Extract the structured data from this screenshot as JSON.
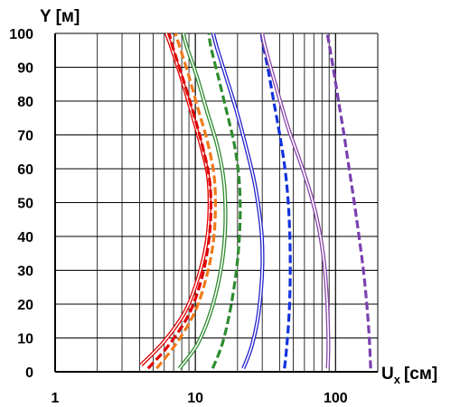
{
  "chart_data": {
    "type": "line",
    "title": "",
    "xlabel": "U",
    "xlabel_subscript": "x",
    "xlabel_unit": "[см]",
    "ylabel": "Y [м]",
    "x_scale": "log",
    "xlim": [
      1,
      200
    ],
    "ylim": [
      0,
      100
    ],
    "x_tick_labels": [
      "1",
      "10",
      "100"
    ],
    "y_tick_labels": [
      "0",
      "10",
      "20",
      "30",
      "40",
      "50",
      "60",
      "70",
      "80",
      "90",
      "100"
    ],
    "grid": true,
    "legend": "none",
    "series": [
      {
        "color": "#e00000",
        "style": "double",
        "points": [
          [
            4.1,
            2
          ],
          [
            6,
            9
          ],
          [
            8.5,
            18
          ],
          [
            10.5,
            28
          ],
          [
            12,
            38
          ],
          [
            12.6,
            48
          ],
          [
            12.3,
            58
          ],
          [
            10.8,
            68
          ],
          [
            9.2,
            78
          ],
          [
            7.8,
            88
          ],
          [
            6.6,
            97
          ],
          [
            6.2,
            100
          ]
        ]
      },
      {
        "color": "#e00000",
        "style": "dashed",
        "points": [
          [
            4.6,
            1
          ],
          [
            6.5,
            8
          ],
          [
            9,
            17
          ],
          [
            11,
            27
          ],
          [
            12.3,
            37
          ],
          [
            12.9,
            47
          ],
          [
            12.6,
            57
          ],
          [
            11.2,
            67
          ],
          [
            9.6,
            77
          ],
          [
            8.1,
            87
          ],
          [
            6.9,
            96
          ],
          [
            6.5,
            100
          ]
        ]
      },
      {
        "color": "#f07a1a",
        "style": "dashed",
        "points": [
          [
            5.3,
            1
          ],
          [
            7.5,
            9
          ],
          [
            10,
            18
          ],
          [
            12,
            28
          ],
          [
            13.4,
            38
          ],
          [
            13.9,
            48
          ],
          [
            13.6,
            58
          ],
          [
            12.2,
            68
          ],
          [
            10.4,
            78
          ],
          [
            8.9,
            88
          ],
          [
            7.6,
            97
          ],
          [
            7.2,
            100
          ]
        ]
      },
      {
        "color": "#2e8b2e",
        "style": "double",
        "points": [
          [
            7.7,
            1
          ],
          [
            10.3,
            8
          ],
          [
            12.7,
            17
          ],
          [
            14.7,
            27
          ],
          [
            16,
            37
          ],
          [
            16.4,
            47
          ],
          [
            15.9,
            57
          ],
          [
            14.3,
            67
          ],
          [
            12.1,
            77
          ],
          [
            10.3,
            87
          ],
          [
            8.7,
            96
          ],
          [
            8.2,
            100
          ]
        ]
      },
      {
        "color": "#2e8b2e",
        "style": "dashed",
        "points": [
          [
            13.3,
            1
          ],
          [
            15.5,
            8
          ],
          [
            17.5,
            17
          ],
          [
            19.2,
            27
          ],
          [
            20.4,
            37
          ],
          [
            20.9,
            47
          ],
          [
            20.5,
            57
          ],
          [
            19,
            67
          ],
          [
            16.7,
            77
          ],
          [
            14.6,
            87
          ],
          [
            12.9,
            96
          ],
          [
            12.5,
            100
          ]
        ]
      },
      {
        "color": "#2222cc",
        "style": "double",
        "points": [
          [
            22,
            1
          ],
          [
            25,
            7
          ],
          [
            27.7,
            15
          ],
          [
            29.4,
            24
          ],
          [
            30.1,
            32
          ],
          [
            29.8,
            40
          ],
          [
            28.4,
            48
          ],
          [
            26.1,
            57
          ],
          [
            22.8,
            67
          ],
          [
            19.7,
            77
          ],
          [
            16.6,
            87
          ],
          [
            14.2,
            96
          ],
          [
            13.4,
            100
          ]
        ]
      },
      {
        "color": "#1133dd",
        "style": "dashed",
        "points": [
          [
            43.2,
            1
          ],
          [
            44.3,
            5
          ],
          [
            45.8,
            12
          ],
          [
            47,
            20
          ],
          [
            47.5,
            30
          ],
          [
            47.2,
            40
          ],
          [
            46,
            50
          ],
          [
            43.6,
            60
          ],
          [
            40,
            70
          ],
          [
            36.2,
            80
          ],
          [
            32.8,
            90
          ],
          [
            30.3,
            97
          ],
          [
            29.6,
            100
          ]
        ]
      },
      {
        "color": "#8844aa",
        "style": "double",
        "points": [
          [
            88,
            1
          ],
          [
            88.8,
            6
          ],
          [
            88.6,
            12
          ],
          [
            86.8,
            22
          ],
          [
            83,
            32
          ],
          [
            76.4,
            42
          ],
          [
            67,
            52
          ],
          [
            56,
            62
          ],
          [
            46,
            72
          ],
          [
            39,
            82
          ],
          [
            34.4,
            90
          ],
          [
            31,
            97
          ],
          [
            30,
            100
          ]
        ]
      },
      {
        "color": "#7a3fb0",
        "style": "dashed",
        "points": [
          [
            178,
            1
          ],
          [
            174,
            10
          ],
          [
            167,
            20
          ],
          [
            158,
            30
          ],
          [
            147,
            40
          ],
          [
            136,
            50
          ],
          [
            125,
            60
          ],
          [
            115,
            70
          ],
          [
            105,
            80
          ],
          [
            96,
            90
          ],
          [
            89,
            98
          ],
          [
            87,
            100
          ]
        ]
      }
    ]
  }
}
